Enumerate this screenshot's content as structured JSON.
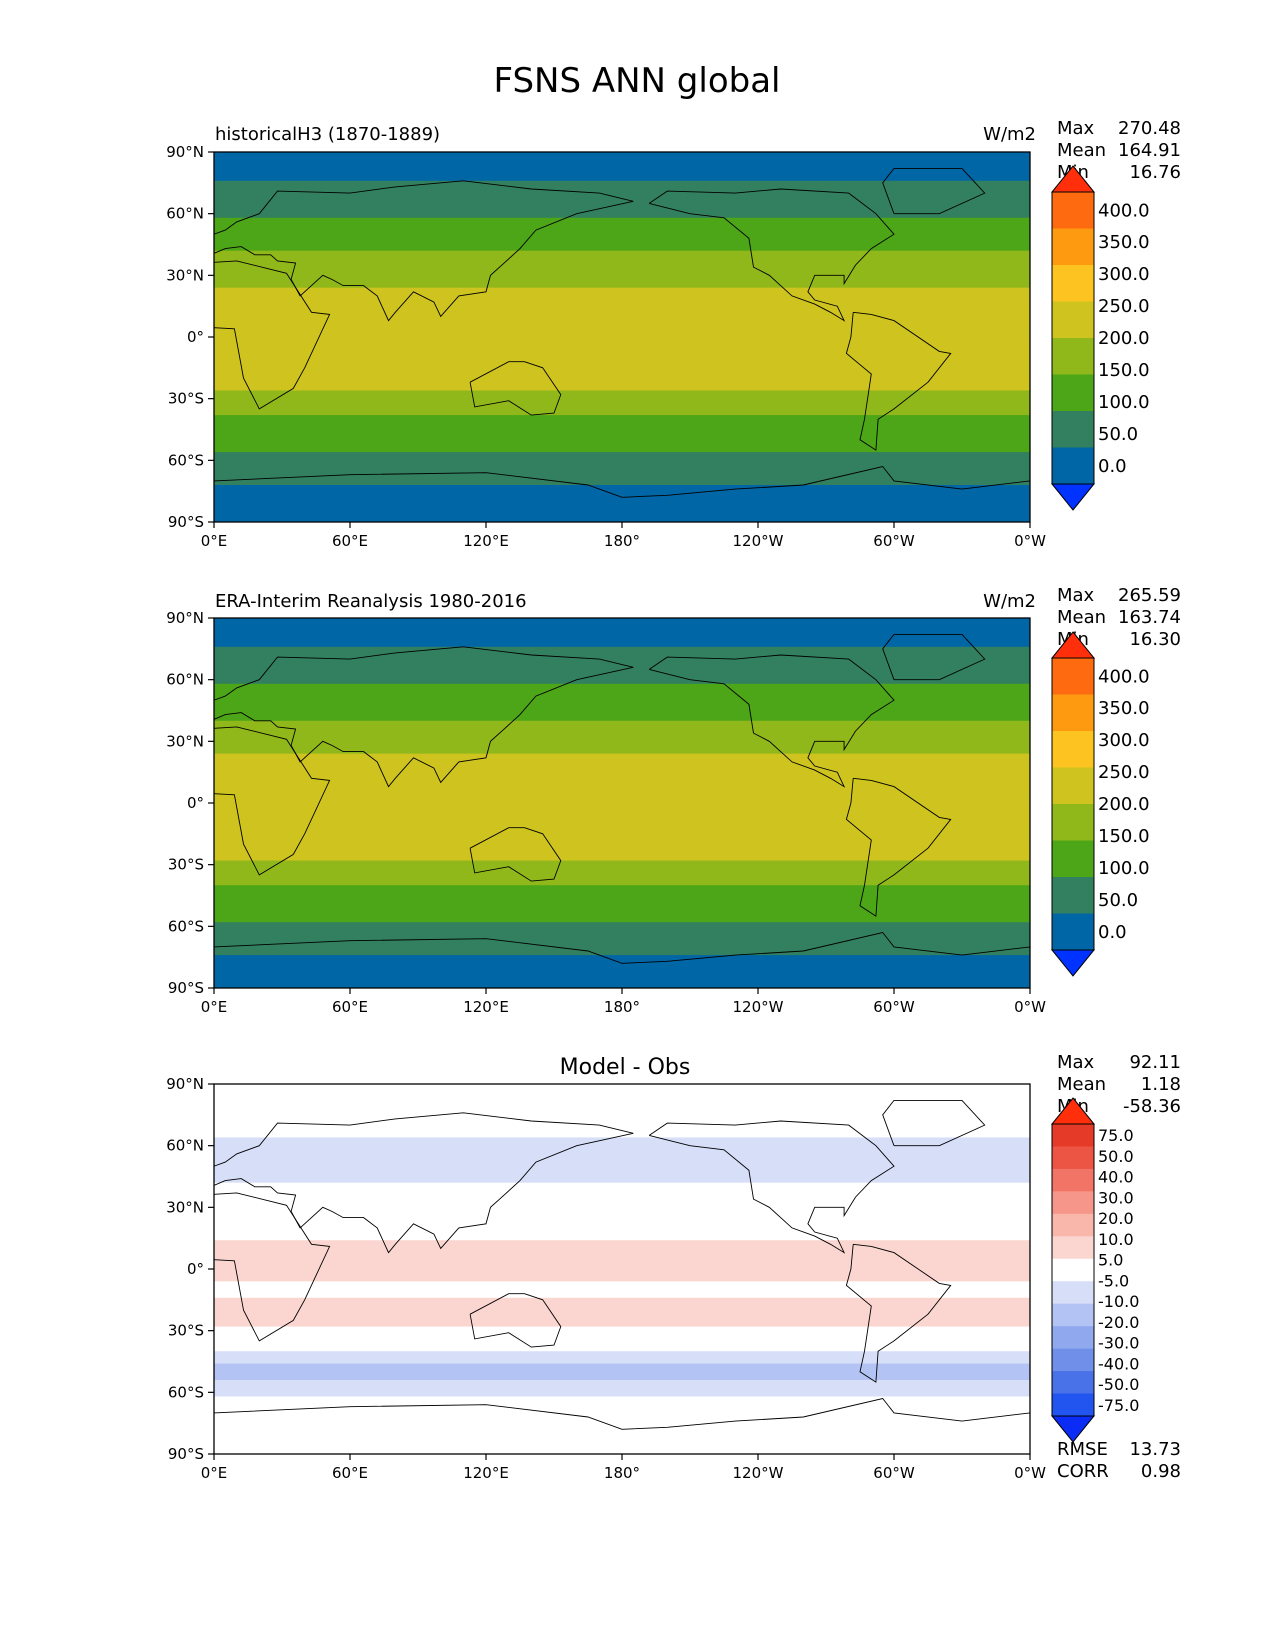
{
  "figure_title": "FSNS ANN global",
  "chart_data": [
    {
      "type": "heatmap",
      "title": "historicalH3 (1870-1889)",
      "units": "W/m2",
      "stats": [
        {
          "label": "Max",
          "value": "270.48"
        },
        {
          "label": "Mean",
          "value": "164.91"
        },
        {
          "label": "Min",
          "value": "16.76"
        }
      ],
      "x_ticks": [
        "0°E",
        "60°E",
        "120°E",
        "180°",
        "120°W",
        "60°W",
        "0°W"
      ],
      "y_ticks": [
        "90°N",
        "60°N",
        "30°N",
        "0°",
        "30°S",
        "60°S",
        "90°S"
      ],
      "xlim": [
        0,
        360
      ],
      "ylim": [
        -90,
        90
      ],
      "colorbar": {
        "levels": [
          0,
          50,
          100,
          150,
          200,
          250,
          300,
          350,
          400
        ],
        "labels": [
          "0.0",
          "50.0",
          "100.0",
          "150.0",
          "200.0",
          "250.0",
          "300.0",
          "350.0",
          "400.0"
        ],
        "colors": [
          "#0033ff",
          "#0066a5",
          "#338060",
          "#4ca618",
          "#91b81a",
          "#cfc41f",
          "#fcc321",
          "#fd9a10",
          "#fd6a10",
          "#ff2f0c"
        ]
      },
      "zonal_profile": {
        "lat": [
          -90,
          -80,
          -70,
          -60,
          -50,
          -40,
          -30,
          -20,
          -10,
          0,
          10,
          20,
          30,
          40,
          50,
          60,
          70,
          80,
          90
        ],
        "value": [
          25,
          35,
          55,
          90,
          110,
          145,
          190,
          215,
          222,
          228,
          222,
          212,
          185,
          155,
          120,
          95,
          70,
          40,
          20
        ]
      }
    },
    {
      "type": "heatmap",
      "title": "ERA-Interim Reanalysis 1980-2016",
      "units": "W/m2",
      "stats": [
        {
          "label": "Max",
          "value": "265.59"
        },
        {
          "label": "Mean",
          "value": "163.74"
        },
        {
          "label": "Min",
          "value": "16.30"
        }
      ],
      "x_ticks": [
        "0°E",
        "60°E",
        "120°E",
        "180°",
        "120°W",
        "60°W",
        "0°W"
      ],
      "y_ticks": [
        "90°N",
        "60°N",
        "30°N",
        "0°",
        "30°S",
        "60°S",
        "90°S"
      ],
      "xlim": [
        0,
        360
      ],
      "ylim": [
        -90,
        90
      ],
      "colorbar": {
        "levels": [
          0,
          50,
          100,
          150,
          200,
          250,
          300,
          350,
          400
        ],
        "labels": [
          "0.0",
          "50.0",
          "100.0",
          "150.0",
          "200.0",
          "250.0",
          "300.0",
          "350.0",
          "400.0"
        ],
        "colors": [
          "#0033ff",
          "#0066a5",
          "#338060",
          "#4ca618",
          "#91b81a",
          "#cfc41f",
          "#fcc321",
          "#fd9a10",
          "#fd6a10",
          "#ff2f0c"
        ]
      },
      "zonal_profile": {
        "lat": [
          -90,
          -80,
          -70,
          -60,
          -50,
          -40,
          -30,
          -20,
          -10,
          0,
          10,
          20,
          30,
          40,
          50,
          60,
          70,
          80,
          90
        ],
        "value": [
          25,
          30,
          60,
          95,
          115,
          150,
          195,
          215,
          222,
          230,
          222,
          212,
          180,
          150,
          125,
          95,
          70,
          40,
          20
        ]
      }
    },
    {
      "type": "heatmap",
      "title": "Model - Obs",
      "units": "",
      "stats": [
        {
          "label": "Max",
          "value": "92.11"
        },
        {
          "label": "Mean",
          "value": "1.18"
        },
        {
          "label": "Min",
          "value": "-58.36"
        }
      ],
      "footer_stats": [
        {
          "label": "RMSE",
          "value": "13.73"
        },
        {
          "label": "CORR",
          "value": "0.98"
        }
      ],
      "x_ticks": [
        "0°E",
        "60°E",
        "120°E",
        "180°",
        "120°W",
        "60°W",
        "0°W"
      ],
      "y_ticks": [
        "90°N",
        "60°N",
        "30°N",
        "0°",
        "30°S",
        "60°S",
        "90°S"
      ],
      "xlim": [
        0,
        360
      ],
      "ylim": [
        -90,
        90
      ],
      "colorbar": {
        "levels": [
          -75,
          -50,
          -40,
          -30,
          -20,
          -10,
          -5,
          5,
          10,
          20,
          30,
          40,
          50,
          75
        ],
        "labels": [
          "-75.0",
          "-50.0",
          "-40.0",
          "-30.0",
          "-20.0",
          "-10.0",
          "-5.0",
          "5.0",
          "10.0",
          "20.0",
          "30.0",
          "40.0",
          "50.0",
          "75.0"
        ],
        "colors": [
          "#0a2cf5",
          "#2255f0",
          "#4a72e8",
          "#6f8fe8",
          "#90a9ee",
          "#b3c3f3",
          "#d6def8",
          "#ffffff",
          "#fbd6d0",
          "#f9b7ac",
          "#f6968a",
          "#f27466",
          "#ec5543",
          "#e63a28",
          "#ff2f0c"
        ]
      },
      "zonal_profile": {
        "lat": [
          -90,
          -80,
          -70,
          -60,
          -50,
          -40,
          -30,
          -20,
          -10,
          0,
          10,
          20,
          30,
          40,
          50,
          60,
          70,
          80,
          90
        ],
        "value": [
          0,
          2,
          3,
          -8,
          -12,
          -6,
          4,
          8,
          3,
          9,
          6,
          3,
          2,
          -3,
          -10,
          -6,
          -4,
          -2,
          0
        ]
      }
    }
  ]
}
